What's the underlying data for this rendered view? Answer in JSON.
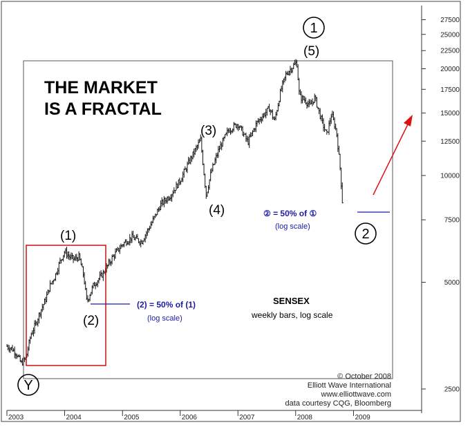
{
  "chart_data": {
    "type": "line",
    "title": "THE MARKET IS A FRACTAL",
    "subtitle": "SENSEX",
    "description": "weekly bars, log scale",
    "y_scale": "log",
    "ylim": [
      1800,
      30000
    ],
    "xlim": [
      "2003-01-01",
      "2009-08-01"
    ],
    "x_ticks": [
      "2003",
      "2004",
      "2005",
      "2006",
      "2007",
      "2008",
      "2009"
    ],
    "y_ticks": [
      2500,
      5000,
      7500,
      10000,
      12500,
      15000,
      17500,
      20000,
      22500,
      25000,
      27500
    ],
    "grid": false,
    "series": [
      {
        "style": "weekly bars",
        "points": [
          [
            "2003-01-01",
            3300
          ],
          [
            "2003-02-01",
            3250
          ],
          [
            "2003-03-01",
            3150
          ],
          [
            "2003-04-01",
            2950
          ],
          [
            "2003-05-01",
            3050
          ],
          [
            "2003-06-01",
            3550
          ],
          [
            "2003-07-01",
            3800
          ],
          [
            "2003-08-01",
            4150
          ],
          [
            "2003-09-01",
            4450
          ],
          [
            "2003-10-01",
            4900
          ],
          [
            "2003-11-01",
            5200
          ],
          [
            "2003-12-01",
            5700
          ],
          [
            "2004-01-01",
            6100
          ],
          [
            "2004-02-01",
            5900
          ],
          [
            "2004-03-01",
            5800
          ],
          [
            "2004-04-01",
            5900
          ],
          [
            "2004-05-01",
            5200
          ],
          [
            "2004-05-20",
            4400
          ],
          [
            "2004-07-01",
            4900
          ],
          [
            "2004-09-01",
            5300
          ],
          [
            "2004-11-01",
            5900
          ],
          [
            "2005-01-01",
            6400
          ],
          [
            "2005-03-01",
            6700
          ],
          [
            "2005-05-01",
            6500
          ],
          [
            "2005-07-01",
            7300
          ],
          [
            "2005-09-01",
            8300
          ],
          [
            "2005-11-01",
            8800
          ],
          [
            "2006-01-01",
            9700
          ],
          [
            "2006-03-01",
            11000
          ],
          [
            "2006-05-10",
            12600
          ],
          [
            "2006-06-14",
            8800
          ],
          [
            "2006-07-15",
            10200
          ],
          [
            "2006-09-01",
            11800
          ],
          [
            "2006-11-01",
            13400
          ],
          [
            "2007-01-01",
            14000
          ],
          [
            "2007-03-05",
            12400
          ],
          [
            "2007-05-01",
            14100
          ],
          [
            "2007-07-20",
            15500
          ],
          [
            "2007-08-20",
            14200
          ],
          [
            "2007-10-01",
            17500
          ],
          [
            "2007-11-01",
            19300
          ],
          [
            "2008-01-08",
            20900
          ],
          [
            "2008-01-25",
            16700
          ],
          [
            "2008-03-01",
            16300
          ],
          [
            "2008-04-01",
            15700
          ],
          [
            "2008-05-01",
            16600
          ],
          [
            "2008-06-15",
            14200
          ],
          [
            "2008-07-15",
            13000
          ],
          [
            "2008-08-15",
            14900
          ],
          [
            "2008-09-15",
            13300
          ],
          [
            "2008-10-10",
            10300
          ],
          [
            "2008-10-27",
            7800
          ]
        ]
      }
    ],
    "wave_labels": [
      {
        "label": "(1)",
        "x": "2004-01-01",
        "y": 6100
      },
      {
        "label": "(2)",
        "x": "2004-05-20",
        "y": 4400
      },
      {
        "label": "(3)",
        "x": "2006-05-10",
        "y": 12600
      },
      {
        "label": "(4)",
        "x": "2006-06-14",
        "y": 8800
      },
      {
        "label": "(5)",
        "x": "2008-01-08",
        "y": 20900
      }
    ],
    "circled_labels": [
      {
        "label": "Y",
        "x": "2003-04-25",
        "y": 2950
      },
      {
        "label": "1",
        "x": "2008-01-08",
        "y": 20900
      },
      {
        "label": "2",
        "x": "2008-10-27",
        "y": 7800
      }
    ],
    "annotations": [
      {
        "text": "(2) = 50% of (1)",
        "subtext": "(log scale)"
      },
      {
        "text": "② = 50% of ①",
        "subtext": "(log scale)"
      }
    ]
  },
  "headline": {
    "line1": "THE MARKET",
    "line2": "IS A FRACTAL"
  },
  "labels": {
    "wave1": "(1)",
    "wave2": "(2)",
    "wave3": "(3)",
    "wave4": "(4)",
    "wave5": "(5)",
    "circ1": "1",
    "circ2": "2",
    "circY": "Y"
  },
  "notes": {
    "small_main": "(2) = 50% of (1)",
    "small_sub": "(log scale)",
    "big_main": "② = 50% of ①",
    "big_sub": "(log scale)"
  },
  "series_label": {
    "name": "SENSEX",
    "desc": "weekly bars, log scale"
  },
  "source": [
    "© October 2008",
    "Elliott Wave International",
    "www.elliottwave.com",
    "data courtesy CQG, Bloomberg"
  ],
  "colors": {
    "box": "#cc1111",
    "arrow": "#dd1111",
    "note": "#1a1aa6",
    "bars": "#111111"
  }
}
